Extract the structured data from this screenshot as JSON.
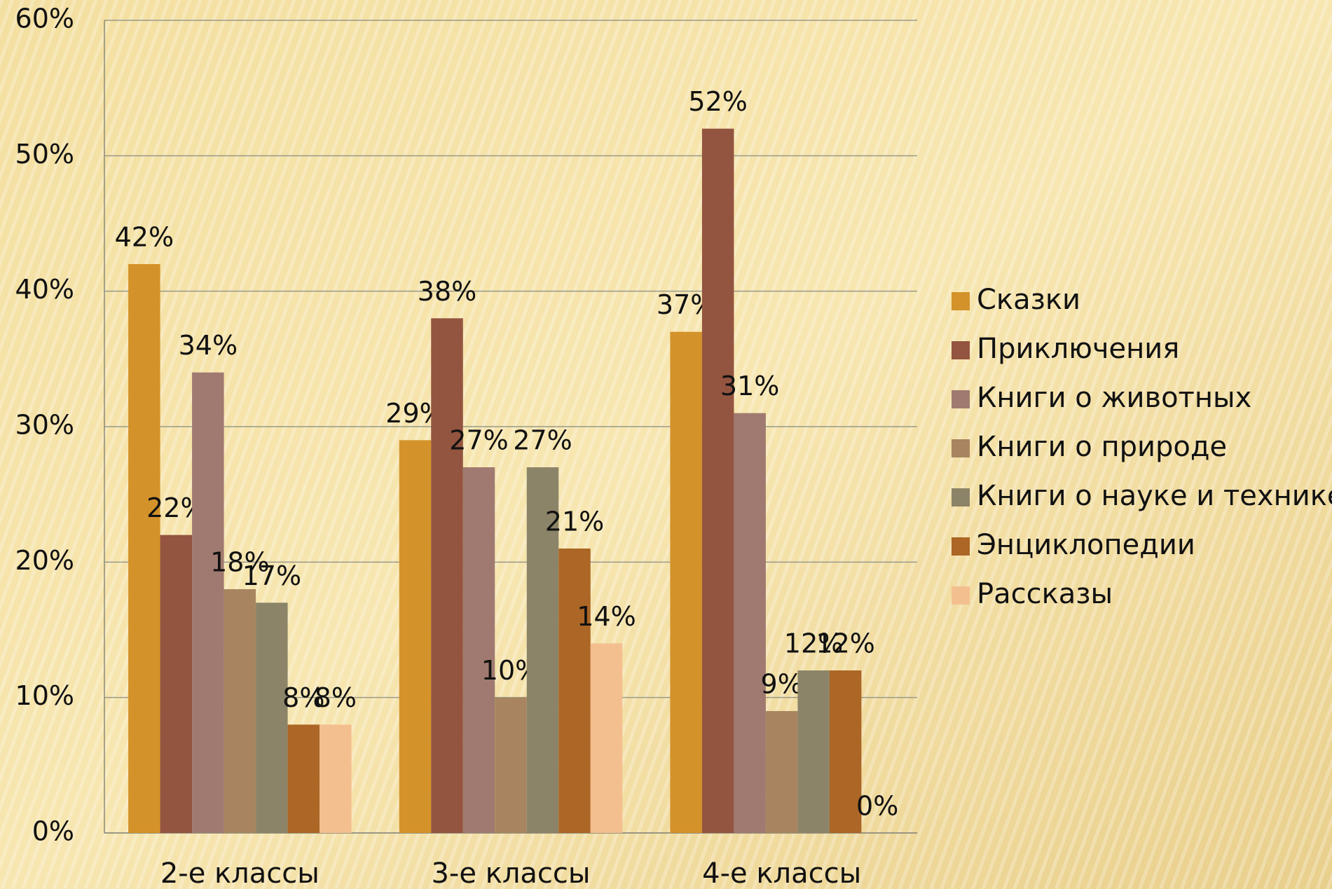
{
  "chart_data": {
    "type": "bar",
    "categories": [
      "2-е классы",
      "3-е классы",
      "4-е классы"
    ],
    "series": [
      {
        "name": "Сказки",
        "color": "#d4922a",
        "values": [
          42,
          29,
          37
        ],
        "value_labels": [
          "42%",
          "29%",
          "37%"
        ]
      },
      {
        "name": "Приключения",
        "color": "#935440",
        "values": [
          22,
          38,
          52
        ],
        "value_labels": [
          "22%",
          "38%",
          "52%"
        ]
      },
      {
        "name": "Книги о животных",
        "color": "#a07a70",
        "values": [
          34,
          27,
          31
        ],
        "value_labels": [
          "34%",
          "27%",
          "31%"
        ]
      },
      {
        "name": "Книги о природе",
        "color": "#a88560",
        "values": [
          18,
          10,
          9
        ],
        "value_labels": [
          "18%",
          "10%",
          "9%"
        ]
      },
      {
        "name": "Книги о науке и технике",
        "color": "#8c8468",
        "values": [
          17,
          27,
          12
        ],
        "value_labels": [
          "17%",
          "27%",
          "12%"
        ]
      },
      {
        "name": "Энциклопедии",
        "color": "#ac6626",
        "values": [
          8,
          21,
          12
        ],
        "value_labels": [
          "8%",
          "21%",
          "12%"
        ]
      },
      {
        "name": "Рассказы",
        "color": "#f4bf8f",
        "values": [
          8,
          14,
          0
        ],
        "value_labels": [
          "8%",
          "14%",
          "0%"
        ]
      }
    ],
    "ylim": [
      0,
      60
    ],
    "yticks": [
      {
        "value": 0,
        "label": "0%"
      },
      {
        "value": 10,
        "label": "10%"
      },
      {
        "value": 20,
        "label": "20%"
      },
      {
        "value": 30,
        "label": "30%"
      },
      {
        "value": 40,
        "label": "40%"
      },
      {
        "value": 50,
        "label": "50%"
      },
      {
        "value": 60,
        "label": "60%"
      }
    ],
    "grid": true,
    "legend": "right"
  }
}
